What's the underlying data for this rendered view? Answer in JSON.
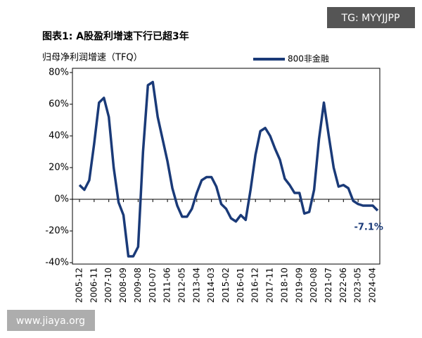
{
  "chart_data": {
    "type": "line",
    "title": "图表1: A股盈利增速下行已超3年",
    "y_label": "归母净利润增速（TFQ）",
    "watermark": "TG: MYYJJPP",
    "footer": "www.jiaya.org",
    "categories": [
      "2005-12",
      null,
      null,
      "2006-11",
      null,
      null,
      "2007-10",
      null,
      null,
      "2008-09",
      null,
      null,
      "2009-08",
      null,
      null,
      "2010-07",
      null,
      null,
      "2011-06",
      null,
      null,
      "2012-05",
      null,
      null,
      "2013-04",
      null,
      null,
      "2014-03",
      null,
      null,
      "2015-02",
      null,
      null,
      "2016-01",
      null,
      null,
      "2016-12",
      null,
      null,
      "2017-11",
      null,
      null,
      "2018-10",
      null,
      null,
      "2019-09",
      null,
      null,
      "2020-08",
      null,
      null,
      "2021-07",
      null,
      null,
      "2022-06",
      null,
      null,
      "2023-05",
      null,
      null,
      "2024-04",
      null
    ],
    "series": [
      {
        "name": "800非金融",
        "color": "#1a3a78",
        "values": [
          9,
          6,
          12,
          35,
          61,
          64,
          52,
          20,
          -2,
          -10,
          -36,
          -36,
          -30,
          30,
          72,
          74,
          52,
          38,
          24,
          7,
          -4,
          -11,
          -11,
          -6,
          4,
          12,
          14,
          14,
          8,
          -3,
          -6,
          -12,
          -14,
          -10,
          -13,
          6,
          28,
          43,
          45,
          40,
          32,
          25,
          13,
          9,
          4,
          4,
          -9,
          -8,
          6,
          38,
          61,
          40,
          20,
          8,
          9,
          7,
          -1,
          -3,
          -4,
          -4,
          -4,
          -7.1
        ],
        "value_labels": [
          null,
          null,
          null,
          null,
          null,
          null,
          null,
          null,
          null,
          null,
          null,
          null,
          null,
          null,
          null,
          null,
          null,
          null,
          null,
          null,
          null,
          null,
          null,
          null,
          null,
          null,
          null,
          null,
          null,
          null,
          null,
          null,
          null,
          null,
          null,
          null,
          null,
          null,
          null,
          null,
          null,
          null,
          null,
          null,
          null,
          null,
          null,
          null,
          null,
          null,
          null,
          null,
          null,
          null,
          null,
          null,
          null,
          null,
          null,
          null,
          null,
          "-7.1%"
        ]
      }
    ],
    "ylim": [
      -40,
      80
    ],
    "yticks": [
      {
        "value": -40,
        "label": "-40%"
      },
      {
        "value": -20,
        "label": "-20%"
      },
      {
        "value": 0,
        "label": "0%"
      },
      {
        "value": 20,
        "label": "20%"
      },
      {
        "value": 40,
        "label": "40%"
      },
      {
        "value": 60,
        "label": "60%"
      },
      {
        "value": 80,
        "label": "80%"
      }
    ],
    "grid": false
  }
}
